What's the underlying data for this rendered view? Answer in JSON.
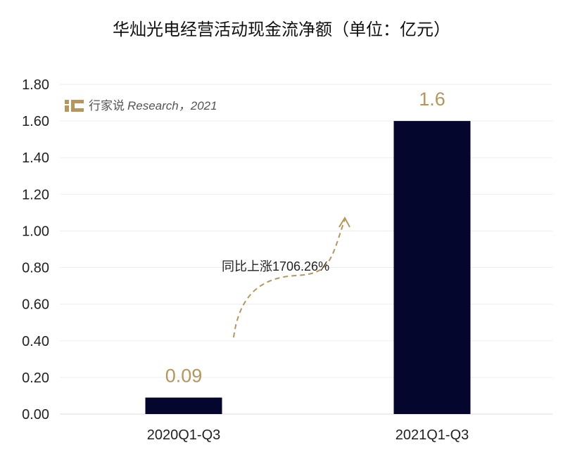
{
  "chart_data": {
    "type": "bar",
    "title": "华灿光电经营活动现金流净额（单位：亿元）",
    "categories": [
      "2020Q1-Q3",
      "2021Q1-Q3"
    ],
    "values": [
      0.09,
      1.6
    ],
    "data_labels": [
      "0.09",
      "1.6"
    ],
    "ylim": [
      0,
      1.8
    ],
    "yticks": [
      "0.00",
      "0.20",
      "0.40",
      "0.60",
      "0.80",
      "1.00",
      "1.20",
      "1.40",
      "1.60",
      "1.80"
    ],
    "grid": true,
    "bar_color": "#05062e",
    "label_color": "#b8965a",
    "annotation": "同比上涨1706.26%"
  },
  "watermark": {
    "brand": "行家说",
    "text": "Research，2021"
  }
}
